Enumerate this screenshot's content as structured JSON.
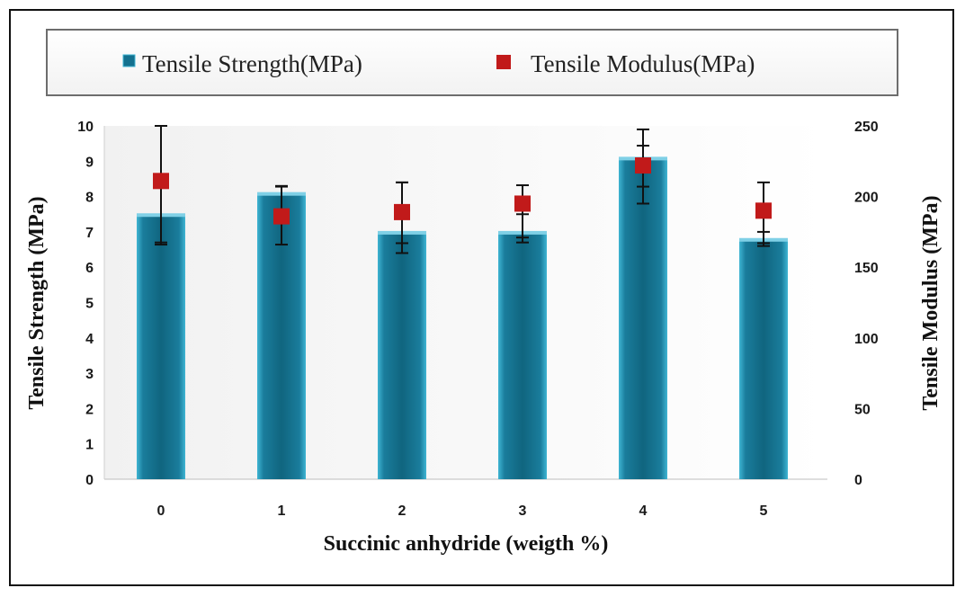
{
  "chart_data": {
    "type": "bar",
    "categories": [
      "0",
      "1",
      "2",
      "3",
      "4",
      "5"
    ],
    "xlabel": "Succinic anhydride (weigth %)",
    "ylabel": "Tensile Strength (MPa)",
    "y2label": "Tensile Modulus (MPa)",
    "ylim": [
      0,
      10
    ],
    "y2lim": [
      0,
      250
    ],
    "yticks": [
      "0",
      "1",
      "2",
      "3",
      "4",
      "5",
      "6",
      "7",
      "8",
      "9",
      "10"
    ],
    "y2ticks": [
      "0",
      "50",
      "100",
      "150",
      "200",
      "250"
    ],
    "legend_position": "top",
    "series": [
      {
        "name": "Tensile Strength(MPa)",
        "kind": "bar",
        "axis": "left",
        "color": "#13708e",
        "values": [
          7.5,
          8.1,
          7.0,
          7.0,
          9.1,
          6.8
        ],
        "error_low": [
          6.7,
          7.6,
          6.4,
          6.7,
          7.8,
          6.6
        ],
        "error_high": [
          10.0,
          8.3,
          8.4,
          7.5,
          9.9,
          7.0
        ]
      },
      {
        "name": "Tensile Modulus(MPa)",
        "kind": "scatter",
        "axis": "right",
        "color": "#c11a1a",
        "values": [
          211,
          186,
          189,
          195,
          222,
          190
        ],
        "error_low": [
          166,
          166,
          167,
          171,
          207,
          167
        ],
        "error_high": [
          250,
          207,
          210,
          208,
          236,
          210
        ]
      }
    ]
  }
}
